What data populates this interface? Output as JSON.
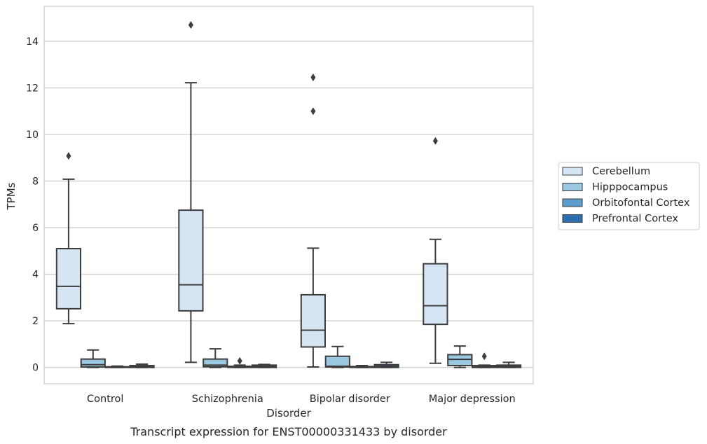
{
  "chart_data": {
    "type": "box",
    "xlabel": "Disorder",
    "ylabel": "TPMs",
    "caption": "Transcript expression for ENST00000331433 by disorder",
    "categories": [
      "Control",
      "Schizophrenia",
      "Bipolar disorder",
      "Major depression"
    ],
    "ylim": [
      -0.7,
      15.5
    ],
    "yticks": [
      0,
      2,
      4,
      6,
      8,
      10,
      12,
      14
    ],
    "grid": "horizontal",
    "legend_position": "right",
    "series": [
      {
        "name": "Cerebellum",
        "color": "#d6e5f4",
        "boxes": [
          {
            "whisker_low": 1.88,
            "q1": 2.52,
            "median": 3.48,
            "q3": 5.1,
            "whisker_high": 8.08,
            "outliers": [
              9.08
            ]
          },
          {
            "whisker_low": 0.22,
            "q1": 2.43,
            "median": 3.55,
            "q3": 6.75,
            "whisker_high": 12.22,
            "outliers": [
              14.7
            ]
          },
          {
            "whisker_low": 0.02,
            "q1": 0.88,
            "median": 1.6,
            "q3": 3.12,
            "whisker_high": 5.12,
            "outliers": [
              11.0,
              12.45
            ]
          },
          {
            "whisker_low": 0.18,
            "q1": 1.85,
            "median": 2.65,
            "q3": 4.45,
            "whisker_high": 5.5,
            "outliers": [
              9.72
            ]
          }
        ]
      },
      {
        "name": "Hipppocampus",
        "color": "#9ac8e0",
        "boxes": [
          {
            "whisker_low": 0.0,
            "q1": 0.02,
            "median": 0.12,
            "q3": 0.36,
            "whisker_high": 0.75,
            "outliers": []
          },
          {
            "whisker_low": 0.0,
            "q1": 0.03,
            "median": 0.1,
            "q3": 0.36,
            "whisker_high": 0.8,
            "outliers": []
          },
          {
            "whisker_low": 0.0,
            "q1": 0.02,
            "median": 0.05,
            "q3": 0.48,
            "whisker_high": 0.9,
            "outliers": []
          },
          {
            "whisker_low": 0.0,
            "q1": 0.08,
            "median": 0.35,
            "q3": 0.55,
            "whisker_high": 0.92,
            "outliers": []
          }
        ]
      },
      {
        "name": "Orbitofontal Cortex",
        "color": "#5a9bc9",
        "boxes": [
          {
            "whisker_low": 0.0,
            "q1": 0.0,
            "median": 0.01,
            "q3": 0.03,
            "whisker_high": 0.06,
            "outliers": []
          },
          {
            "whisker_low": 0.0,
            "q1": 0.0,
            "median": 0.02,
            "q3": 0.05,
            "whisker_high": 0.1,
            "outliers": [
              0.28
            ]
          },
          {
            "whisker_low": 0.0,
            "q1": 0.0,
            "median": 0.02,
            "q3": 0.04,
            "whisker_high": 0.08,
            "outliers": []
          },
          {
            "whisker_low": 0.0,
            "q1": 0.0,
            "median": 0.02,
            "q3": 0.08,
            "whisker_high": 0.1,
            "outliers": [
              0.48
            ]
          }
        ]
      },
      {
        "name": "Prefrontal Cortex",
        "color": "#2e6fad",
        "boxes": [
          {
            "whisker_low": 0.0,
            "q1": 0.0,
            "median": 0.03,
            "q3": 0.08,
            "whisker_high": 0.14,
            "outliers": []
          },
          {
            "whisker_low": 0.0,
            "q1": 0.0,
            "median": 0.04,
            "q3": 0.1,
            "whisker_high": 0.13,
            "outliers": []
          },
          {
            "whisker_low": 0.0,
            "q1": 0.0,
            "median": 0.05,
            "q3": 0.12,
            "whisker_high": 0.22,
            "outliers": []
          },
          {
            "whisker_low": 0.0,
            "q1": 0.0,
            "median": 0.05,
            "q3": 0.1,
            "whisker_high": 0.22,
            "outliers": []
          }
        ]
      }
    ]
  }
}
